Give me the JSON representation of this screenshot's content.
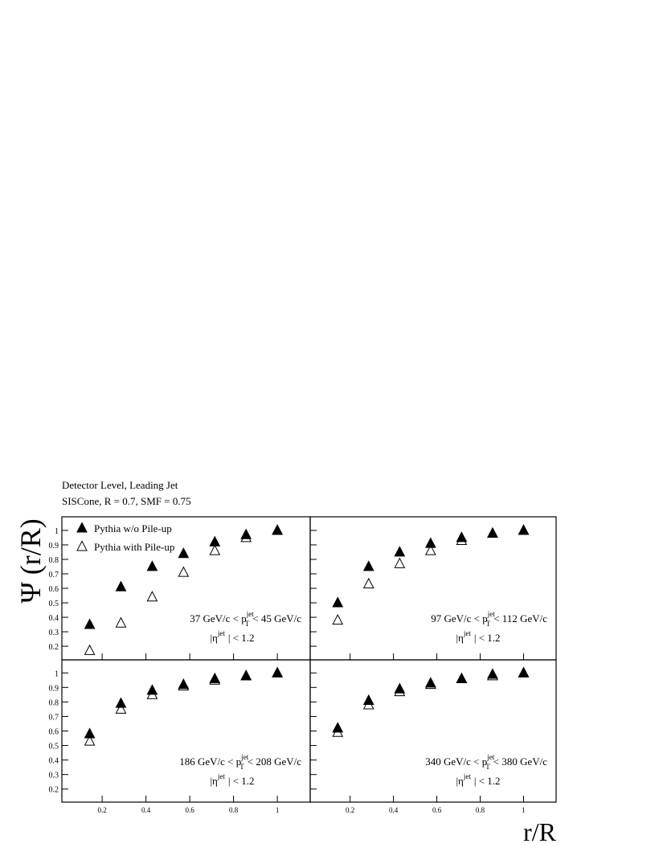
{
  "chart_data": [
    {
      "type": "scatter",
      "title": "Detector Level, Leading Jet",
      "subtitle": "SISCone, R = 0.7, SMF = 0.75",
      "ylabel": "Ψ (r/R)",
      "x": [
        0.1429,
        0.2857,
        0.4286,
        0.5714,
        0.7143,
        0.8571,
        1.0
      ],
      "series": [
        {
          "name": "Pythia w/o  Pile-up",
          "color": "#000000",
          "marker": "filled",
          "values": [
            0.35,
            0.61,
            0.75,
            0.84,
            0.92,
            0.97,
            1.0
          ]
        },
        {
          "name": "Pythia with Pile-up",
          "color": "#000000",
          "marker": "open",
          "values": [
            0.17,
            0.36,
            0.54,
            0.71,
            0.86,
            0.95,
            1.0
          ]
        }
      ],
      "annotations": [
        {
          "text": "37 GeV/c < p",
          "sup": "jet",
          "sub": "T",
          "after": "< 45 GeV/c"
        },
        {
          "text": "|η",
          "sup": "jet",
          "after": "| < 1.2"
        }
      ],
      "xlim": [
        0.016,
        1.15
      ],
      "xticks": [
        0.2,
        0.4,
        0.6,
        0.8,
        1
      ],
      "ylim": [
        0.106,
        1.094
      ],
      "yticks": [
        0.2,
        0.3,
        0.4,
        0.5,
        0.6,
        0.7,
        0.8,
        0.9,
        1
      ]
    },
    {
      "type": "scatter",
      "x": [
        0.1429,
        0.2857,
        0.4286,
        0.5714,
        0.7143,
        0.8571,
        1.0
      ],
      "series": [
        {
          "color": "#000000",
          "marker": "filled",
          "values": [
            0.5,
            0.75,
            0.85,
            0.91,
            0.95,
            0.98,
            1.0
          ]
        },
        {
          "color": "#000000",
          "marker": "open",
          "values": [
            0.38,
            0.63,
            0.77,
            0.86,
            0.93,
            0.98,
            1.0
          ]
        }
      ],
      "annotations": [
        {
          "text": "97 GeV/c < p",
          "sup": "jet",
          "sub": "T",
          "after": "< 112 GeV/c"
        },
        {
          "text": "|η",
          "sup": "jet",
          "after": "| < 1.2"
        }
      ],
      "xlim": [
        0.016,
        1.15
      ],
      "xticks": [
        0.2,
        0.4,
        0.6,
        0.8,
        1
      ],
      "ylim": [
        0.106,
        1.094
      ],
      "yticks": [
        0.2,
        0.3,
        0.4,
        0.5,
        0.6,
        0.7,
        0.8,
        0.9,
        1
      ]
    },
    {
      "type": "scatter",
      "x": [
        0.1429,
        0.2857,
        0.4286,
        0.5714,
        0.7143,
        0.8571,
        1.0
      ],
      "series": [
        {
          "color": "#000000",
          "marker": "filled",
          "values": [
            0.58,
            0.79,
            0.88,
            0.92,
            0.96,
            0.98,
            1.0
          ]
        },
        {
          "color": "#000000",
          "marker": "open",
          "values": [
            0.53,
            0.75,
            0.85,
            0.91,
            0.95,
            0.98,
            1.0
          ]
        }
      ],
      "annotations": [
        {
          "text": "186 GeV/c < p",
          "sup": "jet",
          "sub": "T",
          "after": "< 208 GeV/c"
        },
        {
          "text": "|η",
          "sup": "jet",
          "after": "| < 1.2"
        }
      ],
      "xlim": [
        0.016,
        1.15
      ],
      "xticks": [
        0.2,
        0.4,
        0.6,
        0.8,
        1
      ],
      "ylim": [
        0.11,
        1.09
      ],
      "yticks": [
        0.2,
        0.3,
        0.4,
        0.5,
        0.6,
        0.7,
        0.8,
        0.9,
        1
      ]
    },
    {
      "type": "scatter",
      "xlabel": "r/R",
      "x": [
        0.1429,
        0.2857,
        0.4286,
        0.5714,
        0.7143,
        0.8571,
        1.0
      ],
      "series": [
        {
          "color": "#000000",
          "marker": "filled",
          "values": [
            0.62,
            0.81,
            0.89,
            0.93,
            0.96,
            0.99,
            1.0
          ]
        },
        {
          "color": "#000000",
          "marker": "open",
          "values": [
            0.59,
            0.78,
            0.87,
            0.92,
            0.96,
            0.98,
            1.0
          ]
        }
      ],
      "annotations": [
        {
          "text": "340 GeV/c < p",
          "sup": "jet",
          "sub": "T",
          "after": "< 380 GeV/c"
        },
        {
          "text": "|η",
          "sup": "jet",
          "after": "| < 1.2"
        }
      ],
      "xlim": [
        0.016,
        1.15
      ],
      "xticks": [
        0.2,
        0.4,
        0.6,
        0.8,
        1
      ],
      "ylim": [
        0.11,
        1.09
      ],
      "yticks": [
        0.2,
        0.3,
        0.4,
        0.5,
        0.6,
        0.7,
        0.8,
        0.9,
        1
      ]
    }
  ]
}
